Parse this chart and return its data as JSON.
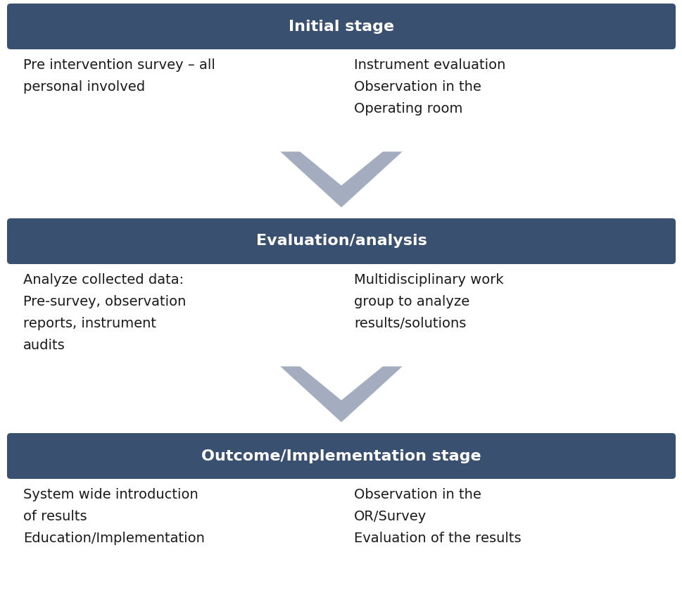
{
  "background_color": "#ffffff",
  "header_bg_color": "#3a5070",
  "header_text_color": "#ffffff",
  "body_text_color": "#1a1a1a",
  "arrow_color": "#9aa4b8",
  "stages": [
    {
      "title": "Initial stage",
      "left_text": "Pre intervention survey – all\npersonal involved",
      "right_text": "Instrument evaluation\nObservation in the\nOperating room"
    },
    {
      "title": "Evaluation/analysis",
      "left_text": "Analyze collected data:\nPre-survey, observation\nreports, instrument\naudits",
      "right_text": "Multidisciplinary work\ngroup to analyze\nresults/solutions"
    },
    {
      "title": "Outcome/Implementation stage",
      "left_text": "System wide introduction\nof results\nEducation/Implementation",
      "right_text": "Observation in the\nOR/Survey\nEvaluation of the results"
    }
  ],
  "header_fontsize": 16,
  "body_fontsize": 14,
  "fig_width": 9.7,
  "fig_height": 8.52,
  "dpi": 100
}
